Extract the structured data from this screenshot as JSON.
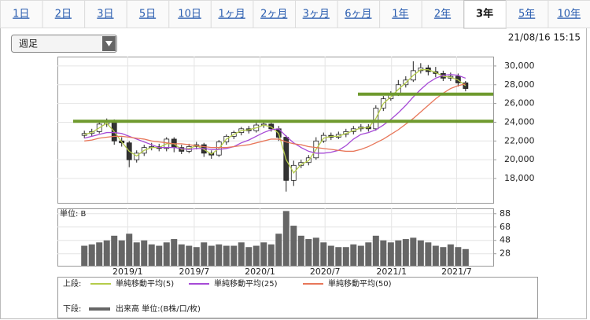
{
  "tabs": [
    "1日",
    "2日",
    "3日",
    "5日",
    "10日",
    "1ヶ月",
    "2ヶ月",
    "3ヶ月",
    "6ヶ月",
    "1年",
    "2年",
    "3年",
    "5年",
    "10年"
  ],
  "active_tab": 11,
  "selector": "週足",
  "timestamp": "21/08/16 15:15",
  "chart_data": [
    {
      "type": "candlestick",
      "legend_label": "上段:",
      "categories": [
        null,
        null,
        null,
        null,
        null,
        null,
        null,
        null,
        null,
        null,
        null,
        null,
        null,
        null,
        null,
        null,
        null,
        null,
        null,
        null,
        null,
        null,
        null,
        null,
        null,
        null,
        null,
        null,
        null,
        null,
        null,
        null,
        null,
        null,
        null,
        null,
        null,
        null,
        null,
        null,
        null,
        null,
        null,
        null,
        null,
        null,
        null,
        null,
        null,
        null,
        null,
        null
      ],
      "open": [
        22600,
        22800,
        23000,
        23800,
        24100,
        22000,
        21800,
        20000,
        20700,
        21300,
        21400,
        21200,
        22200,
        21300,
        20900,
        21400,
        21600,
        20700,
        20500,
        21900,
        22500,
        22900,
        23300,
        23100,
        23700,
        23800,
        23300,
        22400,
        17800,
        19400,
        19700,
        20200,
        22000,
        22600,
        22400,
        22700,
        23000,
        23300,
        23500,
        23300,
        25500,
        26500,
        27000,
        28000,
        28500,
        29500,
        29800,
        29400,
        29200,
        28700,
        28900,
        28200
      ],
      "high": [
        23100,
        23300,
        24000,
        24400,
        24300,
        22400,
        22000,
        21000,
        21600,
        21800,
        21700,
        22400,
        22400,
        21600,
        21700,
        21900,
        21800,
        21000,
        22100,
        22700,
        23100,
        23500,
        23600,
        24000,
        24100,
        24100,
        23600,
        22600,
        19900,
        20000,
        20500,
        22400,
        22900,
        22900,
        23000,
        23300,
        23600,
        23800,
        23800,
        25800,
        26800,
        27300,
        28500,
        28900,
        30500,
        30300,
        30100,
        29900,
        29500,
        29300,
        29200,
        28400
      ],
      "low": [
        22300,
        22500,
        22800,
        23500,
        21600,
        21400,
        19200,
        19700,
        20400,
        21000,
        20900,
        20900,
        20800,
        20600,
        20700,
        21100,
        20300,
        20100,
        20300,
        21600,
        22200,
        22600,
        22800,
        22900,
        23400,
        23000,
        22000,
        16600,
        17200,
        19100,
        19400,
        20000,
        21800,
        22100,
        22200,
        22400,
        22700,
        23000,
        23000,
        23100,
        25200,
        26300,
        26800,
        27700,
        28300,
        29200,
        29000,
        28800,
        28400,
        28400,
        27800,
        27300
      ],
      "close": [
        22800,
        23000,
        23800,
        24100,
        22000,
        21800,
        20000,
        20700,
        21300,
        21400,
        21200,
        22200,
        21300,
        20900,
        21400,
        21600,
        20700,
        20500,
        21900,
        22500,
        22900,
        23300,
        23100,
        23700,
        23800,
        23300,
        22400,
        17800,
        19400,
        19700,
        20200,
        22000,
        22600,
        22400,
        22700,
        23000,
        23300,
        23500,
        23300,
        25500,
        26500,
        27000,
        28000,
        28500,
        29500,
        29800,
        29400,
        29200,
        28700,
        28900,
        28200,
        27600
      ],
      "up_color": "#ffffff",
      "down_color": "#333333",
      "wick_color": "#222222",
      "series": [
        {
          "name": "単純移動平均(5)",
          "color": "#b5cc4a",
          "values": [
            22700,
            22900,
            23400,
            23900,
            23000,
            21900,
            20900,
            20400,
            21000,
            21300,
            21300,
            21700,
            21700,
            21100,
            21200,
            21500,
            21100,
            20600,
            21200,
            22200,
            22700,
            23100,
            23200,
            23400,
            23700,
            23500,
            22800,
            20000,
            18600,
            19500,
            19900,
            21100,
            22300,
            22500,
            22500,
            22800,
            23100,
            23400,
            23400,
            24400,
            26000,
            26700,
            27500,
            28200,
            29000,
            29600,
            29600,
            29300,
            28900,
            28800,
            28500,
            27900
          ]
        },
        {
          "name": "単純移動平均(25)",
          "color": "#a64ad6",
          "values": [
            22300,
            22500,
            22700,
            22900,
            22900,
            22800,
            22500,
            22200,
            21900,
            21600,
            21300,
            21300,
            21300,
            21200,
            21100,
            21200,
            21200,
            21100,
            21100,
            21200,
            21400,
            21800,
            22100,
            22500,
            22900,
            23200,
            23300,
            22500,
            21800,
            21300,
            20900,
            20700,
            20700,
            20800,
            21000,
            21500,
            22200,
            22700,
            22900,
            23200,
            23700,
            24300,
            25000,
            25800,
            26700,
            27500,
            28200,
            28700,
            29000,
            29100,
            29000,
            28700
          ]
        },
        {
          "name": "単純移動平均(50)",
          "color": "#e8775a",
          "values": [
            22000,
            22100,
            22300,
            22400,
            22500,
            22500,
            22400,
            22300,
            22200,
            22000,
            21900,
            21800,
            21700,
            21700,
            21600,
            21500,
            21400,
            21300,
            21300,
            21300,
            21400,
            21500,
            21600,
            21800,
            22000,
            22200,
            22200,
            21900,
            21700,
            21600,
            21400,
            21300,
            21200,
            21100,
            21000,
            20900,
            20900,
            21100,
            21400,
            21800,
            22200,
            22700,
            23200,
            23800,
            24400,
            25100,
            25800,
            26500,
            27100,
            27600,
            27900,
            28100
          ]
        }
      ],
      "hlines": [
        {
          "value": 24100,
          "x0": -1.5,
          "color": "#6f9a2e"
        },
        {
          "value": 27000,
          "x0": 36.6,
          "color": "#6f9a2e"
        }
      ],
      "xlim": [
        -3.6,
        54.7
      ],
      "ylim": [
        15400,
        31000
      ],
      "yticks": [
        {
          "value": 18000,
          "label": "18,000"
        },
        {
          "value": 20000,
          "label": "20,000"
        },
        {
          "value": 22000,
          "label": "22,000"
        },
        {
          "value": 24000,
          "label": "24,000"
        },
        {
          "value": 26000,
          "label": "26,000"
        },
        {
          "value": 28000,
          "label": "28,000"
        },
        {
          "value": 30000,
          "label": "30,000"
        }
      ],
      "grid": true
    },
    {
      "type": "bar",
      "legend_label": "下段:",
      "unit_label": "単位: B",
      "series": [
        {
          "name": "出来高 単位:(B株/口/枚)",
          "color": "#666666",
          "values": [
            40,
            42,
            45,
            48,
            55,
            48,
            58,
            45,
            48,
            42,
            40,
            45,
            50,
            42,
            40,
            38,
            45,
            40,
            42,
            40,
            40,
            45,
            38,
            40,
            45,
            42,
            58,
            92,
            70,
            55,
            50,
            52,
            45,
            40,
            38,
            38,
            42,
            40,
            45,
            55,
            48,
            45,
            48,
            50,
            52,
            48,
            45,
            40,
            38,
            42,
            38,
            35
          ]
        }
      ],
      "xlim": [
        -3.6,
        54.7
      ],
      "ylim": [
        10,
        96
      ],
      "xticks": [
        {
          "value": 5.8,
          "label": "2019/1"
        },
        {
          "value": 14.7,
          "label": "2019/7"
        },
        {
          "value": 23.5,
          "label": "2020/1"
        },
        {
          "value": 32.2,
          "label": "2020/7"
        },
        {
          "value": 41.1,
          "label": "2021/1"
        },
        {
          "value": 49.8,
          "label": "2021/7"
        }
      ],
      "yticks": [
        28,
        48,
        68,
        88
      ],
      "grid": true
    }
  ]
}
